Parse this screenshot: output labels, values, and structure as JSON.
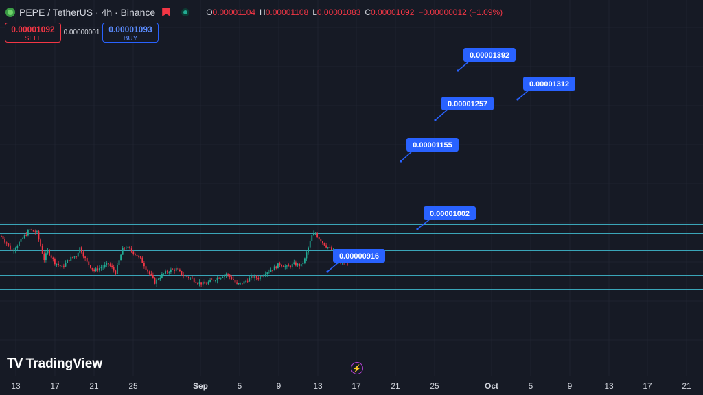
{
  "header": {
    "symbol_title": "PEPE / TetherUS · 4h · Binance",
    "ohlc": [
      {
        "key": "O",
        "value": "0.00001104"
      },
      {
        "key": "H",
        "value": "0.00001108"
      },
      {
        "key": "L",
        "value": "0.00001083"
      },
      {
        "key": "C",
        "value": "0.00001092"
      }
    ],
    "change": "−0.00000012 (−1.09%)"
  },
  "trade": {
    "sell_price": "0.00001092",
    "sell_label": "SELL",
    "spread": "0.00000001",
    "buy_price": "0.00001093",
    "buy_label": "BUY"
  },
  "branding": {
    "logo_text": "TradingView",
    "logo_mark": "TV"
  },
  "icons": {
    "symbol": "pepe-coin-icon",
    "alert": "bookmark-icon",
    "status": "market-status-icon",
    "replay": "lightning-icon"
  },
  "colors": {
    "background": "#161a25",
    "up": "#22ab94",
    "down": "#f23645",
    "level_line": "#3aa5b8",
    "label": "#2962ff"
  },
  "chart_data": {
    "type": "candlestick",
    "timeframe": "4h",
    "x_ticks": [
      "13",
      "17",
      "21",
      "25",
      "Sep",
      "5",
      "9",
      "13",
      "17",
      "21",
      "25",
      "Oct",
      "5",
      "9",
      "13",
      "17",
      "21"
    ],
    "ylim": [
      8.4e-06,
      1.5e-05
    ],
    "last_price": 1.092e-05,
    "price_levels": [
      {
        "label": "0.00001392",
        "value": 1.392e-05
      },
      {
        "label": "0.00001312",
        "value": 1.312e-05
      },
      {
        "label": "0.00001257",
        "value": 1.257e-05
      },
      {
        "label": "0.00001155",
        "value": 1.155e-05
      },
      {
        "label": "0.00001002",
        "value": 1.002e-05
      },
      {
        "label": "0.00000916",
        "value": 9.16e-06
      }
    ],
    "close_path": [
      [
        0,
        1.24e-05
      ],
      [
        6,
        1.15e-05
      ],
      [
        10,
        1.2e-05
      ],
      [
        16,
        1.278e-05
      ],
      [
        20,
        1.258e-05
      ],
      [
        24,
        1.1e-05
      ],
      [
        26,
        1.15e-05
      ],
      [
        30,
        1.08e-05
      ],
      [
        34,
        1.05e-05
      ],
      [
        38,
        1.1e-05
      ],
      [
        42,
        1.12e-05
      ],
      [
        44,
        1.17e-05
      ],
      [
        48,
        1.08e-05
      ],
      [
        52,
        1.03e-05
      ],
      [
        56,
        1.05e-05
      ],
      [
        60,
        1.07e-05
      ],
      [
        64,
        1.02e-05
      ],
      [
        68,
        1.16e-05
      ],
      [
        70,
        1.175e-05
      ],
      [
        74,
        1.14e-05
      ],
      [
        78,
        1.1e-05
      ],
      [
        82,
        1.03e-05
      ],
      [
        86,
        9.6e-06
      ],
      [
        90,
        1.005e-05
      ],
      [
        94,
        1.03e-05
      ],
      [
        98,
        1.04e-05
      ],
      [
        102,
        1e-05
      ],
      [
        106,
        9.85e-06
      ],
      [
        110,
        9.6e-06
      ],
      [
        114,
        9.5e-06
      ],
      [
        118,
        9.7e-06
      ],
      [
        122,
        9.9e-06
      ],
      [
        126,
        1.01e-05
      ],
      [
        130,
        9.75e-06
      ],
      [
        132,
        9.45e-06
      ],
      [
        136,
        9.6e-06
      ],
      [
        140,
        9.9e-06
      ],
      [
        144,
        9.85e-06
      ],
      [
        148,
        1.02e-05
      ],
      [
        152,
        1.04e-05
      ],
      [
        156,
        1.07e-05
      ],
      [
        160,
        1.05e-05
      ],
      [
        164,
        1.07e-05
      ],
      [
        168,
        1.06e-05
      ],
      [
        170,
        1.1e-05
      ],
      [
        174,
        1.24e-05
      ],
      [
        176,
        1.255e-05
      ],
      [
        178,
        1.225e-05
      ],
      [
        182,
        1.18e-05
      ],
      [
        186,
        1.15e-05
      ],
      [
        188,
        1.085e-05
      ],
      [
        192,
        1.08e-05
      ],
      [
        196,
        1.092e-05
      ],
      [
        198,
        1.11e-05
      ],
      [
        200,
        1.092e-05
      ]
    ]
  }
}
